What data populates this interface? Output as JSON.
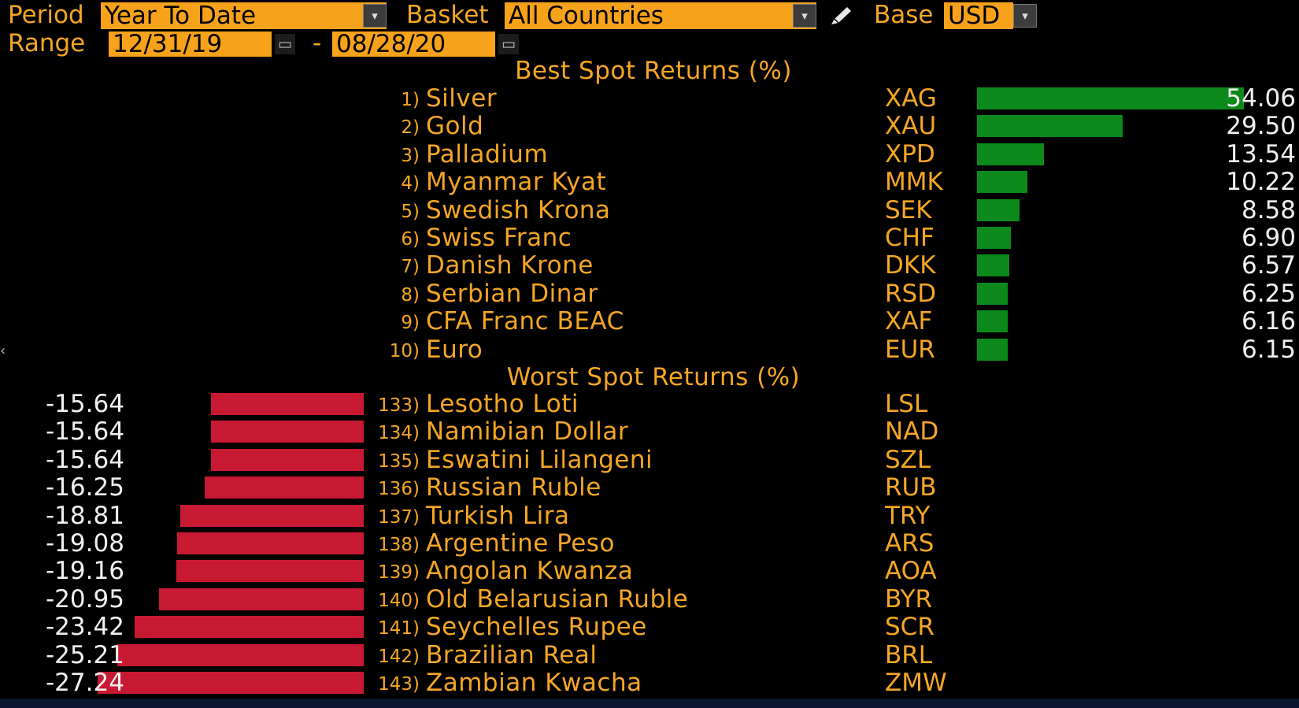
{
  "header": {
    "period_label": "Period",
    "period_value": "Year To Date",
    "basket_label": "Basket",
    "basket_value": "All Countries",
    "base_label": "Base",
    "base_value": "USD",
    "range_label": "Range",
    "range_start": "12/31/19",
    "range_separator": "-",
    "range_end": "08/28/20",
    "dropdown_icon": "▾",
    "calendar_icon": "▭",
    "edit_icon": "pencil-icon"
  },
  "best": {
    "title": "Best Spot Returns (%)",
    "bar_max": 54.06,
    "rows": [
      {
        "rank": "1)",
        "name": "Silver",
        "code": "XAG",
        "value": "54.06",
        "num": 54.06
      },
      {
        "rank": "2)",
        "name": "Gold",
        "code": "XAU",
        "value": "29.50",
        "num": 29.5
      },
      {
        "rank": "3)",
        "name": "Palladium",
        "code": "XPD",
        "value": "13.54",
        "num": 13.54
      },
      {
        "rank": "4)",
        "name": "Myanmar Kyat",
        "code": "MMK",
        "value": "10.22",
        "num": 10.22
      },
      {
        "rank": "5)",
        "name": "Swedish Krona",
        "code": "SEK",
        "value": "8.58",
        "num": 8.58
      },
      {
        "rank": "6)",
        "name": "Swiss Franc",
        "code": "CHF",
        "value": "6.90",
        "num": 6.9
      },
      {
        "rank": "7)",
        "name": "Danish Krone",
        "code": "DKK",
        "value": "6.57",
        "num": 6.57
      },
      {
        "rank": "8)",
        "name": "Serbian Dinar",
        "code": "RSD",
        "value": "6.25",
        "num": 6.25
      },
      {
        "rank": "9)",
        "name": "CFA Franc BEAC",
        "code": "XAF",
        "value": "6.16",
        "num": 6.16
      },
      {
        "rank": "10)",
        "name": "Euro",
        "code": "EUR",
        "value": "6.15",
        "num": 6.15
      }
    ]
  },
  "worst": {
    "title": "Worst Spot Returns (%)",
    "bar_max": 27.24,
    "rows": [
      {
        "rank": "133)",
        "name": "Lesotho Loti",
        "code": "LSL",
        "value": "-15.64",
        "num": -15.64
      },
      {
        "rank": "134)",
        "name": "Namibian Dollar",
        "code": "NAD",
        "value": "-15.64",
        "num": -15.64
      },
      {
        "rank": "135)",
        "name": "Eswatini Lilangeni",
        "code": "SZL",
        "value": "-15.64",
        "num": -15.64
      },
      {
        "rank": "136)",
        "name": "Russian Ruble",
        "code": "RUB",
        "value": "-16.25",
        "num": -16.25
      },
      {
        "rank": "137)",
        "name": "Turkish Lira",
        "code": "TRY",
        "value": "-18.81",
        "num": -18.81
      },
      {
        "rank": "138)",
        "name": "Argentine Peso",
        "code": "ARS",
        "value": "-19.08",
        "num": -19.08
      },
      {
        "rank": "139)",
        "name": "Angolan Kwanza",
        "code": "AOA",
        "value": "-19.16",
        "num": -19.16
      },
      {
        "rank": "140)",
        "name": "Old Belarusian Ruble",
        "code": "BYR",
        "value": "-20.95",
        "num": -20.95
      },
      {
        "rank": "141)",
        "name": "Seychelles Rupee",
        "code": "SCR",
        "value": "-23.42",
        "num": -23.42
      },
      {
        "rank": "142)",
        "name": "Brazilian Real",
        "code": "BRL",
        "value": "-25.21",
        "num": -25.21
      },
      {
        "rank": "143)",
        "name": "Zambian Kwacha",
        "code": "ZMW",
        "value": "-27.24",
        "num": -27.24
      }
    ]
  },
  "colors": {
    "accent": "#f5a623",
    "field_bg": "#f7a21b",
    "positive_bar": "#0b8a1b",
    "negative_bar": "#c81932",
    "value_text": "#f0f0f0"
  }
}
